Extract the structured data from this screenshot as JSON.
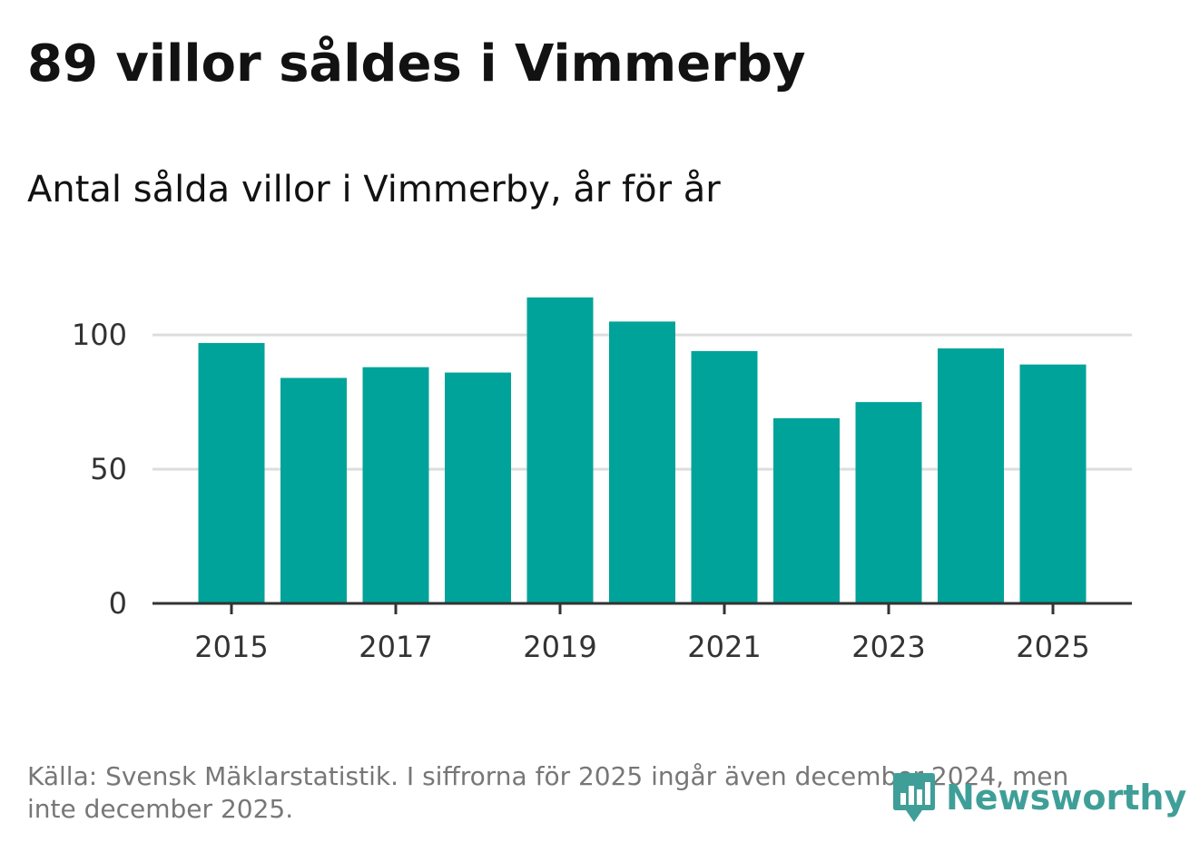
{
  "header": {
    "title": "89 villor såldes i Vimmerby",
    "subtitle": "Antal sålda villor i Vimmerby, år för år"
  },
  "footer": {
    "source": "Källa: Svensk Mäklarstatistik. I siffrorna för 2025 ingår även december 2024, men inte december 2025.",
    "logo_text": "Newsworthy"
  },
  "colors": {
    "bar": "#00a39a",
    "grid": "#dddddd",
    "axis": "#333333",
    "logo": "#3f9f98"
  },
  "chart_data": {
    "type": "bar",
    "title": "Antal sålda villor i Vimmerby, år för år",
    "xlabel": "",
    "ylabel": "",
    "categories": [
      "2015",
      "2016",
      "2017",
      "2018",
      "2019",
      "2020",
      "2021",
      "2022",
      "2023",
      "2024",
      "2025"
    ],
    "values": [
      97,
      84,
      88,
      86,
      114,
      105,
      94,
      69,
      75,
      95,
      89
    ],
    "ylim": [
      0,
      120
    ],
    "yticks": [
      0,
      50,
      100
    ],
    "xtick_labels": [
      "2015",
      "2017",
      "2019",
      "2021",
      "2023",
      "2025"
    ],
    "grid": true
  }
}
